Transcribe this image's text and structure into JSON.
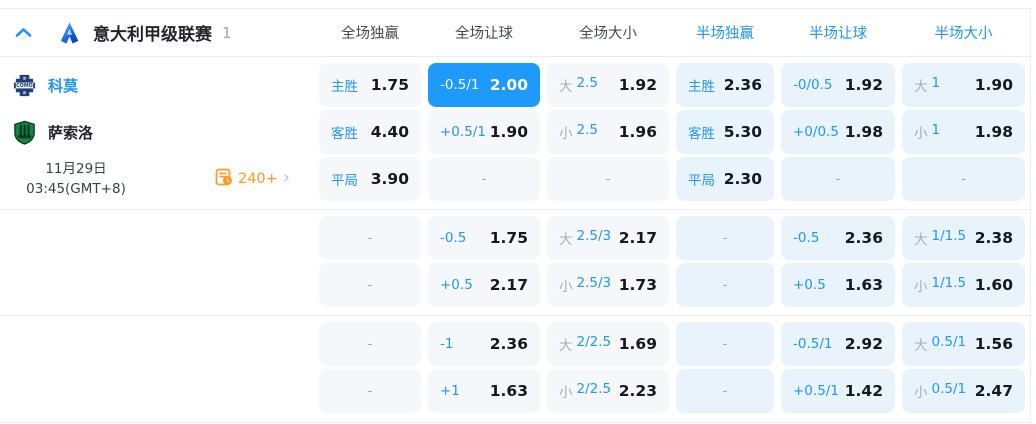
{
  "header": {
    "league_name": "意大利甲级联赛",
    "match_count": "1",
    "columns": [
      {
        "label": "全场独赢",
        "group": "ft"
      },
      {
        "label": "全场让球",
        "group": "ft"
      },
      {
        "label": "全场大小",
        "group": "ft"
      },
      {
        "label": "半场独赢",
        "group": "ht"
      },
      {
        "label": "半场让球",
        "group": "ht"
      },
      {
        "label": "半场大小",
        "group": "ht"
      }
    ]
  },
  "match": {
    "home_team": "科莫",
    "away_team": "萨索洛",
    "kickoff_date": "11月29日",
    "kickoff_time": "03:45(GMT+8)",
    "extra_markets_count": "240+"
  },
  "icons": {
    "collapse": "chevron-up-icon",
    "league": "serie-a-logo-icon",
    "home_badge": "como-crest-icon",
    "away_badge": "sassuolo-crest-icon",
    "markets": "odds-history-icon",
    "more": "chevron-right-icon"
  },
  "colors": {
    "accent_blue": "#2196f3",
    "selected_cell_bg": "#1e9bfa",
    "ft_cell_bg": "#f5f7fa",
    "ht_cell_bg": "#e9f3fc",
    "label_gray": "#a7aeba",
    "value_dark": "#14181f",
    "orange": "#ff9a1f",
    "divider": "#e9edf2"
  },
  "odds_sections": [
    {
      "rows": [
        {
          "left": "home_team",
          "cells": [
            {
              "label": [
                [
                  "主胜",
                  "blue"
                ]
              ],
              "odds": "1.75"
            },
            {
              "label": [
                [
                  "-0.5/1",
                  "blue"
                ]
              ],
              "odds": "2.00",
              "hl": true
            },
            {
              "label": [
                [
                  "大",
                  "gray"
                ],
                [
                  "2.5",
                  "blue"
                ]
              ],
              "odds": "1.92"
            },
            {
              "label": [
                [
                  "主胜",
                  "blue"
                ]
              ],
              "odds": "2.36"
            },
            {
              "label": [
                [
                  "-0/0.5",
                  "blue"
                ]
              ],
              "odds": "1.92"
            },
            {
              "label": [
                [
                  "大",
                  "gray"
                ],
                [
                  "1",
                  "blue"
                ]
              ],
              "odds": "1.90"
            }
          ]
        },
        {
          "left": "away_team",
          "cells": [
            {
              "label": [
                [
                  "客胜",
                  "blue"
                ]
              ],
              "odds": "4.40"
            },
            {
              "label": [
                [
                  "+0.5/1",
                  "blue"
                ]
              ],
              "odds": "1.90"
            },
            {
              "label": [
                [
                  "小",
                  "gray"
                ],
                [
                  "2.5",
                  "blue"
                ]
              ],
              "odds": "1.96"
            },
            {
              "label": [
                [
                  "客胜",
                  "blue"
                ]
              ],
              "odds": "5.30"
            },
            {
              "label": [
                [
                  "+0/0.5",
                  "blue"
                ]
              ],
              "odds": "1.98"
            },
            {
              "label": [
                [
                  "小",
                  "gray"
                ],
                [
                  "1",
                  "blue"
                ]
              ],
              "odds": "1.98"
            }
          ]
        },
        {
          "left": "match_info",
          "cells": [
            {
              "label": [
                [
                  "平局",
                  "blue"
                ]
              ],
              "odds": "3.90"
            },
            {
              "label": [],
              "odds": "-"
            },
            {
              "label": [],
              "odds": "-"
            },
            {
              "label": [
                [
                  "平局",
                  "blue"
                ]
              ],
              "odds": "2.30"
            },
            {
              "label": [],
              "odds": "-"
            },
            {
              "label": [],
              "odds": "-"
            }
          ]
        }
      ]
    },
    {
      "rows": [
        {
          "left": null,
          "cells": [
            {
              "label": [],
              "odds": "-"
            },
            {
              "label": [
                [
                  "-0.5",
                  "blue"
                ]
              ],
              "odds": "1.75"
            },
            {
              "label": [
                [
                  "大",
                  "gray"
                ],
                [
                  "2.5/3",
                  "blue"
                ]
              ],
              "odds": "2.17"
            },
            {
              "label": [],
              "odds": "-"
            },
            {
              "label": [
                [
                  "-0.5",
                  "blue"
                ]
              ],
              "odds": "2.36"
            },
            {
              "label": [
                [
                  "大",
                  "gray"
                ],
                [
                  "1/1.5",
                  "blue"
                ]
              ],
              "odds": "2.38"
            }
          ]
        },
        {
          "left": null,
          "cells": [
            {
              "label": [],
              "odds": "-"
            },
            {
              "label": [
                [
                  "+0.5",
                  "blue"
                ]
              ],
              "odds": "2.17"
            },
            {
              "label": [
                [
                  "小",
                  "gray"
                ],
                [
                  "2.5/3",
                  "blue"
                ]
              ],
              "odds": "1.73"
            },
            {
              "label": [],
              "odds": "-"
            },
            {
              "label": [
                [
                  "+0.5",
                  "blue"
                ]
              ],
              "odds": "1.63"
            },
            {
              "label": [
                [
                  "小",
                  "gray"
                ],
                [
                  "1/1.5",
                  "blue"
                ]
              ],
              "odds": "1.60"
            }
          ]
        }
      ]
    },
    {
      "rows": [
        {
          "left": null,
          "cells": [
            {
              "label": [],
              "odds": "-"
            },
            {
              "label": [
                [
                  "-1",
                  "blue"
                ]
              ],
              "odds": "2.36"
            },
            {
              "label": [
                [
                  "大",
                  "gray"
                ],
                [
                  "2/2.5",
                  "blue"
                ]
              ],
              "odds": "1.69"
            },
            {
              "label": [],
              "odds": "-"
            },
            {
              "label": [
                [
                  "-0.5/1",
                  "blue"
                ]
              ],
              "odds": "2.92"
            },
            {
              "label": [
                [
                  "大",
                  "gray"
                ],
                [
                  "0.5/1",
                  "blue"
                ]
              ],
              "odds": "1.56"
            }
          ]
        },
        {
          "left": null,
          "cells": [
            {
              "label": [],
              "odds": "-"
            },
            {
              "label": [
                [
                  "+1",
                  "blue"
                ]
              ],
              "odds": "1.63"
            },
            {
              "label": [
                [
                  "小",
                  "gray"
                ],
                [
                  "2/2.5",
                  "blue"
                ]
              ],
              "odds": "2.23"
            },
            {
              "label": [],
              "odds": "-"
            },
            {
              "label": [
                [
                  "+0.5/1",
                  "blue"
                ]
              ],
              "odds": "1.42"
            },
            {
              "label": [
                [
                  "小",
                  "gray"
                ],
                [
                  "0.5/1",
                  "blue"
                ]
              ],
              "odds": "2.47"
            }
          ]
        }
      ]
    }
  ]
}
